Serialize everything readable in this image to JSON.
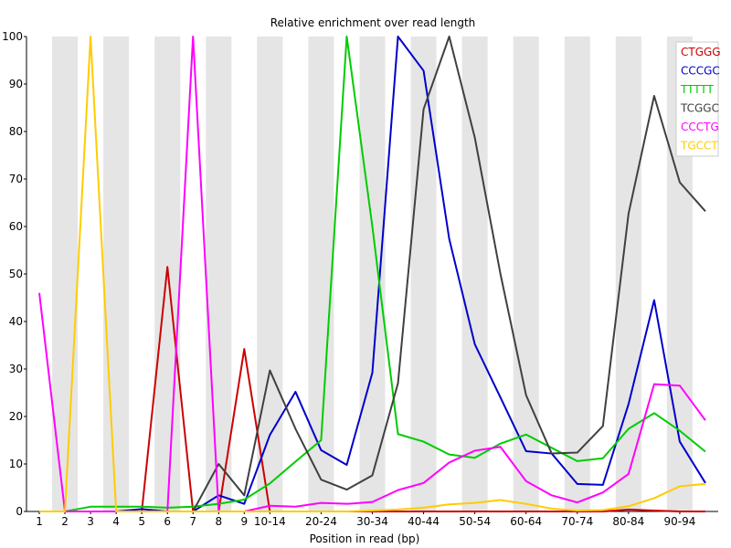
{
  "chart_data": {
    "type": "line",
    "title": "Relative enrichment over read length",
    "xlabel": "Position in read (bp)",
    "ylabel": "",
    "ylim": [
      0,
      100
    ],
    "yticks": [
      0,
      10,
      20,
      30,
      40,
      50,
      60,
      70,
      80,
      90,
      100
    ],
    "categories": [
      "1",
      "2",
      "3",
      "4",
      "5",
      "6",
      "7",
      "8",
      "9",
      "10-14",
      "15-19",
      "20-24",
      "25-29",
      "30-34",
      "35-39",
      "40-44",
      "45-49",
      "50-54",
      "55-59",
      "60-64",
      "65-69",
      "70-74",
      "75-79",
      "80-84",
      "85-89",
      "90-94",
      "95-99"
    ],
    "xtick_labels": [
      "1",
      "2",
      "3",
      "4",
      "5",
      "6",
      "7",
      "8",
      "9",
      "10-14",
      "",
      "20-24",
      "",
      "30-34",
      "",
      "40-44",
      "",
      "50-54",
      "",
      "60-64",
      "",
      "70-74",
      "",
      "80-84",
      "",
      "90-94",
      ""
    ],
    "grid": "alternating vertical bands",
    "legend_position": "top-right",
    "series": [
      {
        "name": "CTGGG",
        "color": "#cc0000",
        "values": [
          0,
          0,
          0,
          0,
          0,
          51.5,
          0,
          0,
          34.2,
          0,
          0,
          0,
          0,
          0,
          0,
          0,
          0,
          0,
          0,
          0,
          0,
          0,
          0,
          0.4,
          0.2,
          0,
          0
        ]
      },
      {
        "name": "CCCGC",
        "color": "#0000cc",
        "values": [
          0,
          0,
          0,
          0,
          0.5,
          0,
          0,
          3.4,
          1.6,
          16.1,
          25.2,
          12.9,
          9.8,
          29.2,
          100,
          92.8,
          57.4,
          35.2,
          24,
          12.7,
          12.2,
          5.8,
          5.6,
          22.6,
          44.5,
          14.7,
          6
        ]
      },
      {
        "name": "TTTTT",
        "color": "#00cc00",
        "values": [
          0,
          0,
          1,
          1,
          1,
          0.8,
          1,
          1.6,
          2.5,
          5.9,
          10.5,
          15,
          100,
          60,
          16.3,
          14.7,
          12,
          11.3,
          14.3,
          16.2,
          13.4,
          10.6,
          11.2,
          17.4,
          20.7,
          17,
          12.6
        ]
      },
      {
        "name": "TCGGC",
        "color": "#404040",
        "values": [
          0,
          0,
          0,
          0,
          0,
          0,
          0,
          10,
          3.4,
          29.7,
          17.4,
          6.7,
          4.6,
          7.6,
          27,
          84.7,
          100,
          78.7,
          50,
          24.5,
          12.2,
          12.4,
          18,
          62.7,
          87.5,
          69.3,
          63.2
        ]
      },
      {
        "name": "CCCTG",
        "color": "#ff00ff",
        "values": [
          46,
          0,
          0,
          0,
          0,
          0,
          100,
          0,
          0,
          1.2,
          1,
          1.8,
          1.6,
          2,
          4.5,
          6,
          10.3,
          12.8,
          13.6,
          6.4,
          3.4,
          1.9,
          4,
          7.9,
          26.8,
          26.5,
          19.2
        ]
      },
      {
        "name": "TGCCT",
        "color": "#ffcc00",
        "values": [
          0,
          0,
          100,
          0,
          0,
          0,
          0,
          0,
          0,
          0,
          0,
          0,
          0,
          0.2,
          0.4,
          0.8,
          1.5,
          1.8,
          2.4,
          1.6,
          0.6,
          0.2,
          0.3,
          1.1,
          2.8,
          5.3,
          5.8
        ]
      }
    ]
  }
}
